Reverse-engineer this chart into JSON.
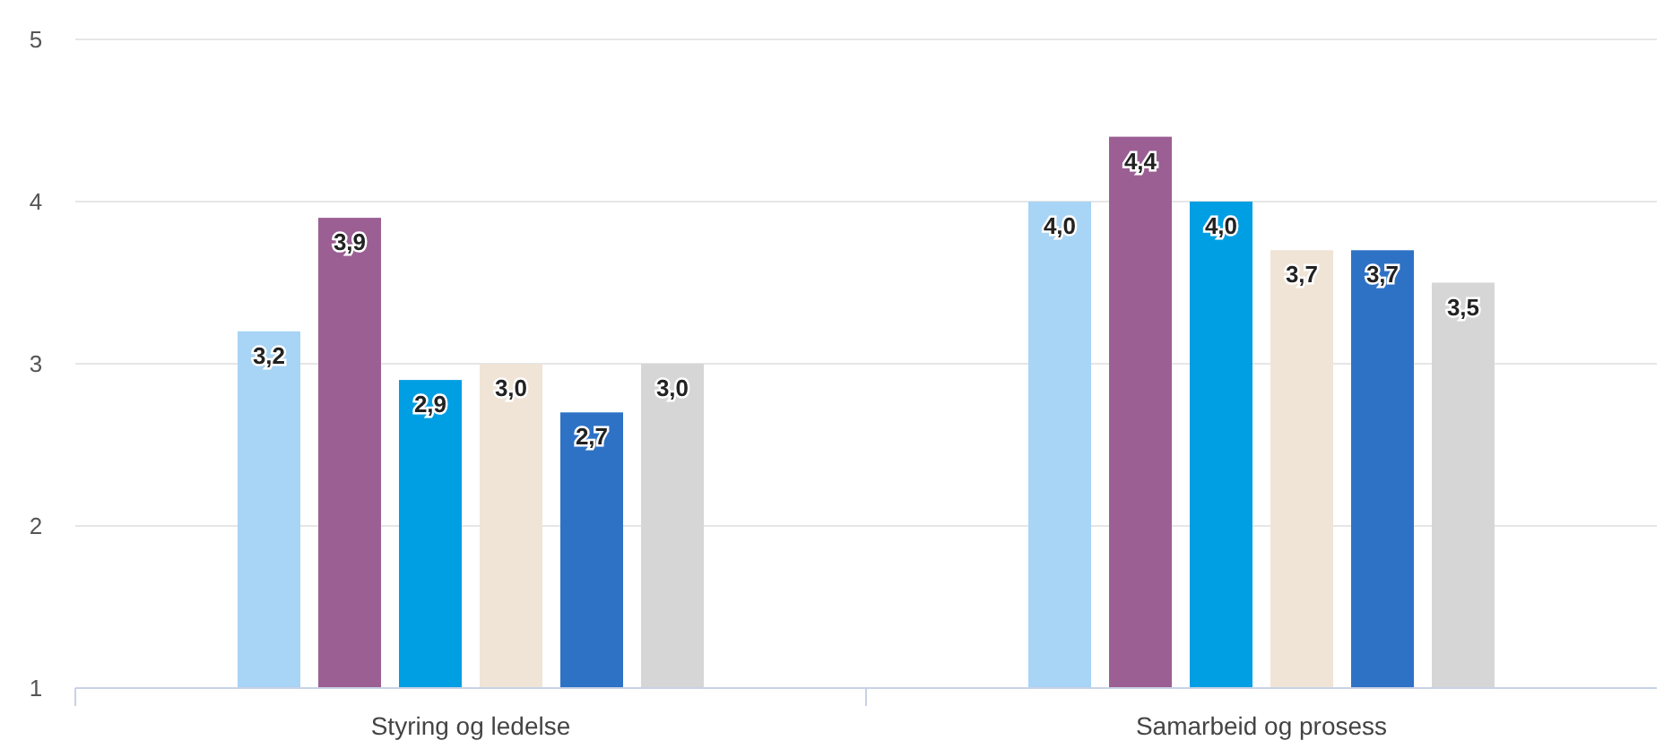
{
  "chart_data": {
    "type": "bar",
    "categories": [
      "Styring og ledelse",
      "Samarbeid og prosess"
    ],
    "series": [
      {
        "color": "#a8d4f5",
        "values": [
          3.2,
          4.0
        ],
        "value_labels": [
          "3,2",
          "4,0"
        ]
      },
      {
        "color": "#9b5f94",
        "values": [
          3.9,
          4.4
        ],
        "value_labels": [
          "3,9",
          "4,4"
        ]
      },
      {
        "color": "#009fe3",
        "values": [
          2.9,
          4.0
        ],
        "value_labels": [
          "2,9",
          "4,0"
        ]
      },
      {
        "color": "#efe4d6",
        "values": [
          3.0,
          3.7
        ],
        "value_labels": [
          "3,0",
          "3,7"
        ]
      },
      {
        "color": "#2e72c6",
        "values": [
          2.7,
          3.7
        ],
        "value_labels": [
          "2,7",
          "3,7"
        ]
      },
      {
        "color": "#d6d6d6",
        "values": [
          3.0,
          3.5
        ],
        "value_labels": [
          "3,0",
          "3,5"
        ]
      }
    ],
    "ylim": [
      1,
      5
    ],
    "yticks": [
      1,
      2,
      3,
      4,
      5
    ],
    "grid": "y"
  }
}
